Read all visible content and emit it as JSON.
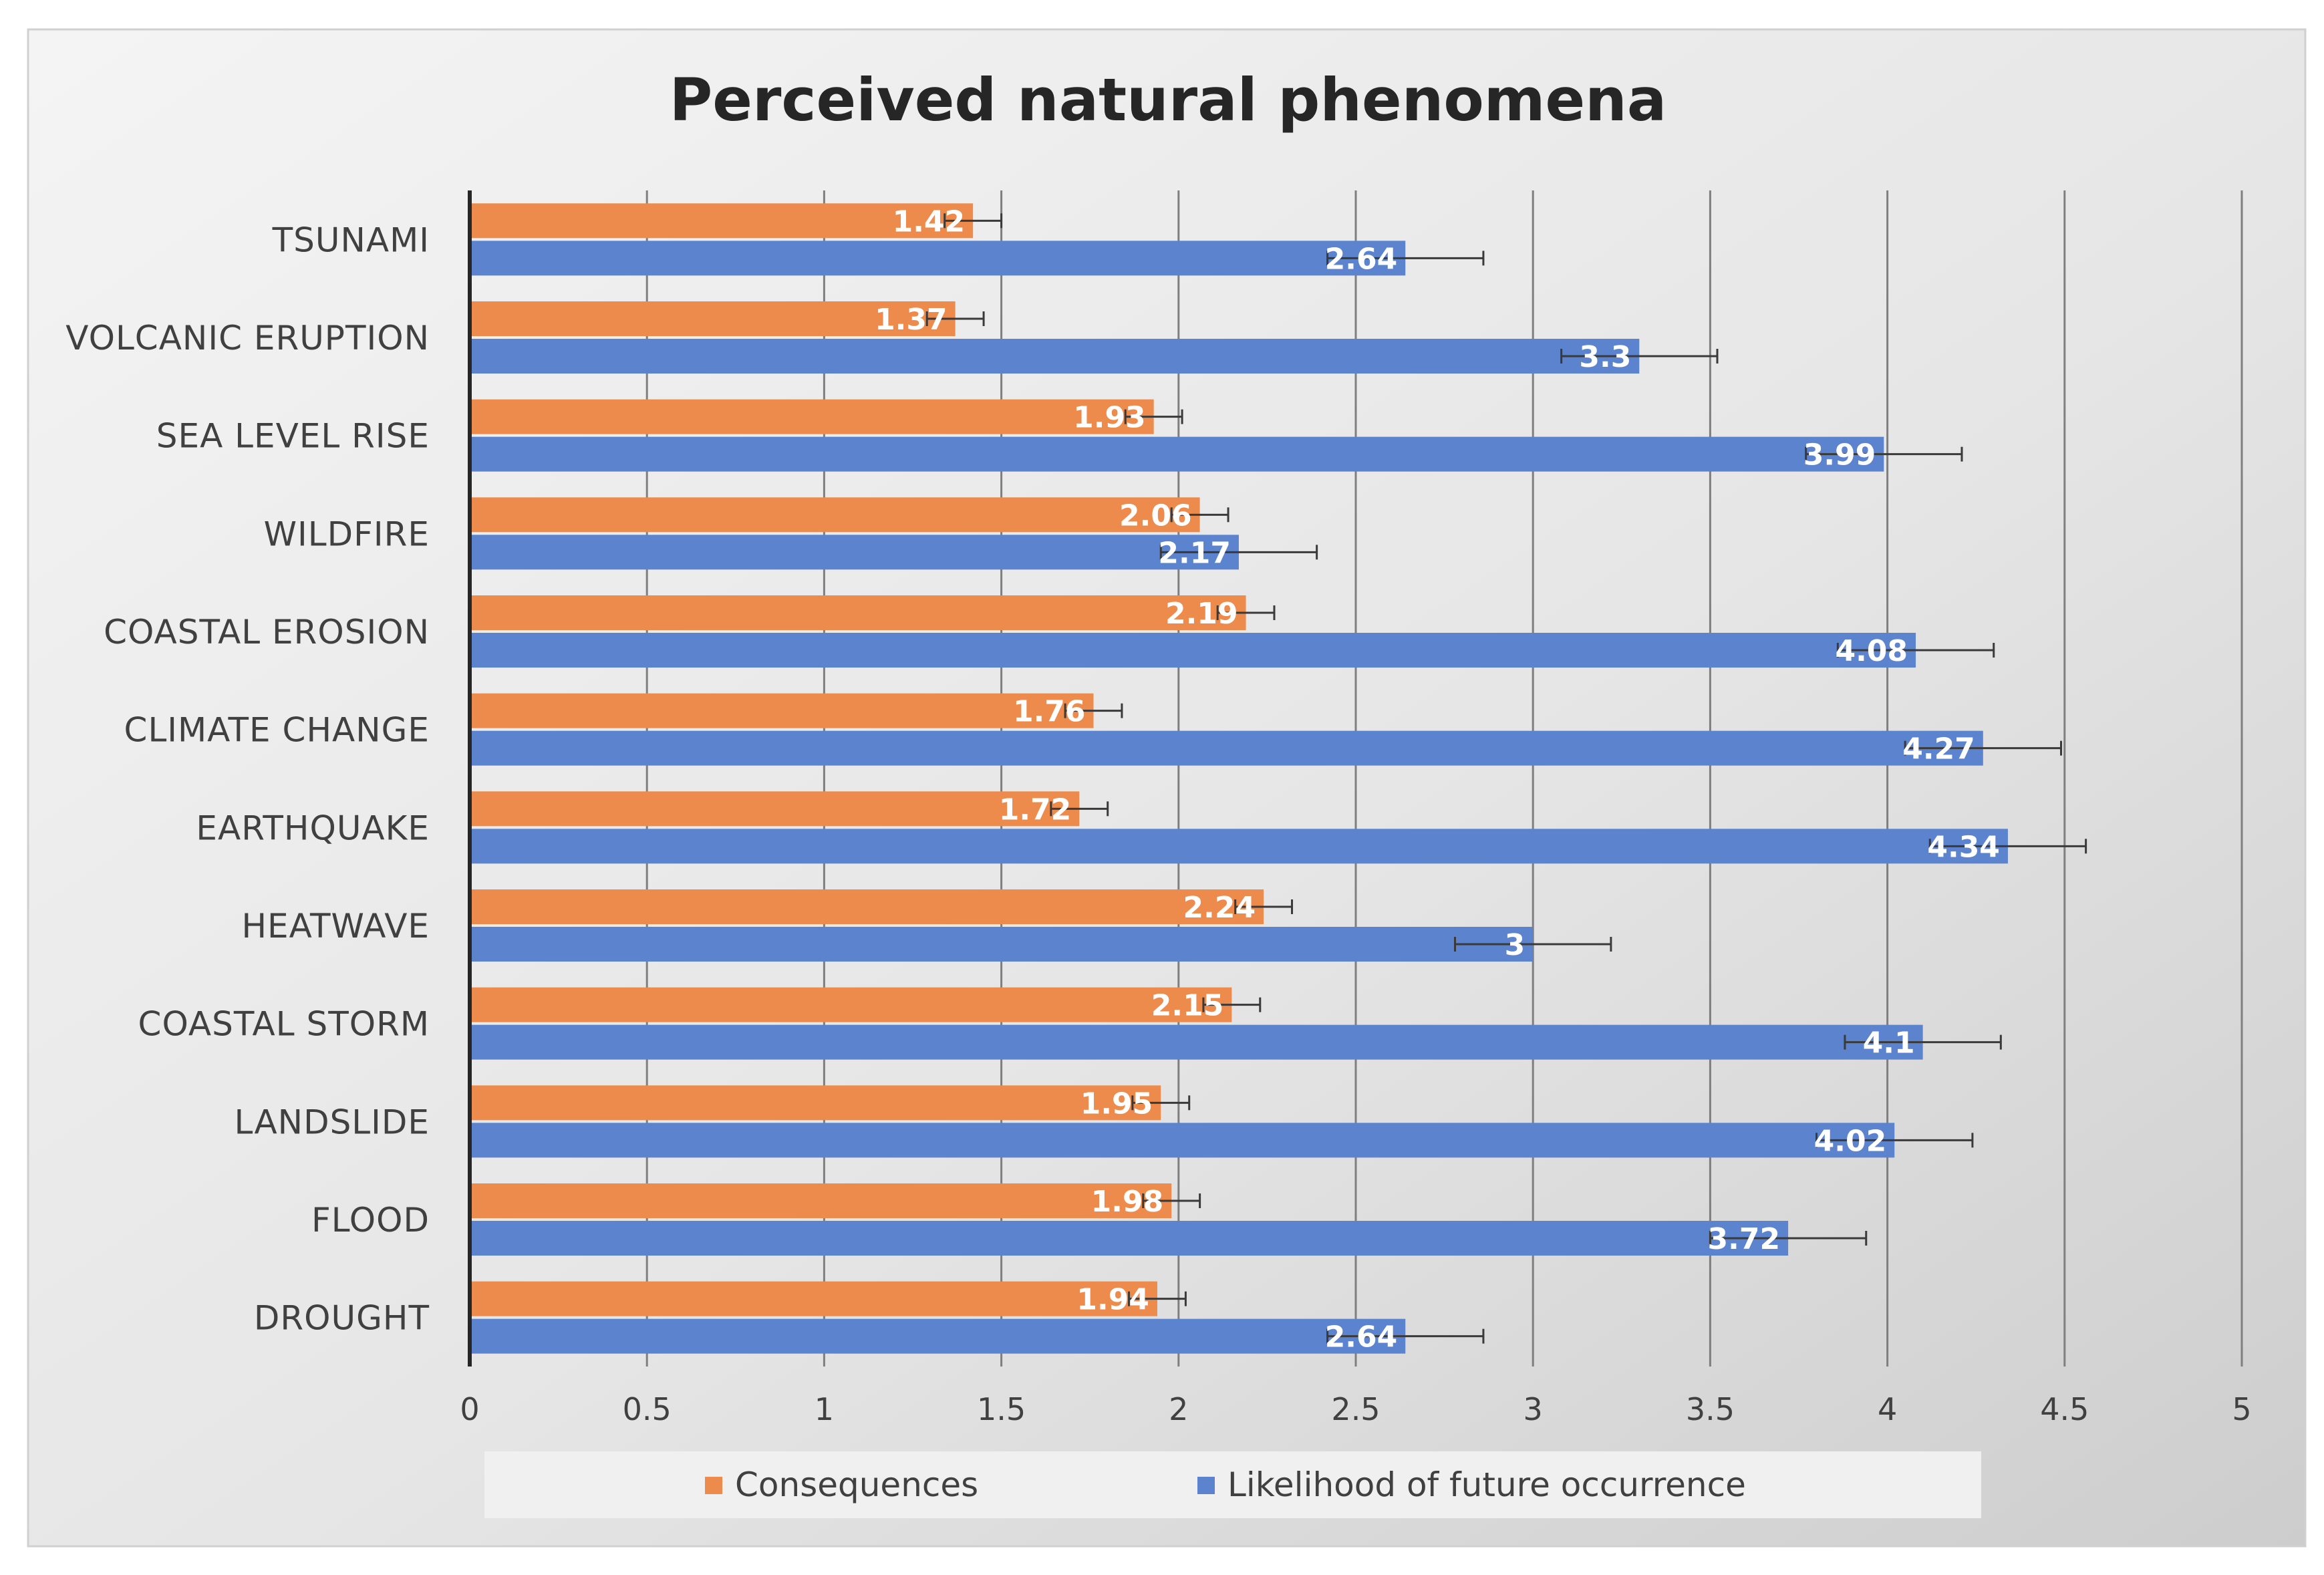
{
  "chart_data": {
    "type": "bar",
    "orientation": "horizontal",
    "title": "Perceived natural phenomena",
    "categories": [
      "TSUNAMI",
      "VOLCANIC ERUPTION",
      "SEA LEVEL RISE",
      "WILDFIRE",
      "COASTAL EROSION",
      "CLIMATE CHANGE",
      "EARTHQUAKE",
      "HEATWAVE",
      "COASTAL STORM",
      "LANDSLIDE",
      "FLOOD",
      "DROUGHT"
    ],
    "series": [
      {
        "name": "Consequences",
        "color": "#ED8B4C",
        "values": [
          1.42,
          1.37,
          1.93,
          2.06,
          2.19,
          1.76,
          1.72,
          2.24,
          2.15,
          1.95,
          1.98,
          1.94
        ],
        "labels": [
          "1.42",
          "1.37",
          "1.93",
          "2.06",
          "2.19",
          "1.76",
          "1.72",
          "2.24",
          "2.15",
          "1.95",
          "1.98",
          "1.94"
        ],
        "error": [
          0.08,
          0.08,
          0.08,
          0.08,
          0.08,
          0.08,
          0.08,
          0.08,
          0.08,
          0.08,
          0.08,
          0.08
        ]
      },
      {
        "name": "Likelihood of future occurrence",
        "color": "#5B83CE",
        "values": [
          2.64,
          3.3,
          3.99,
          2.17,
          4.08,
          4.27,
          4.34,
          3,
          4.1,
          4.02,
          3.72,
          2.64
        ],
        "labels": [
          "2.64",
          "3.3",
          "3.99",
          "2.17",
          "4.08",
          "4.27",
          "4.34",
          "3",
          "4.1",
          "4.02",
          "3.72",
          "2.64"
        ],
        "error": [
          0.22,
          0.22,
          0.22,
          0.22,
          0.22,
          0.22,
          0.22,
          0.22,
          0.22,
          0.22,
          0.22,
          0.22
        ]
      }
    ],
    "xlim": [
      0,
      5
    ],
    "xticks": [
      0,
      0.5,
      1,
      1.5,
      2,
      2.5,
      3,
      3.5,
      4,
      4.5,
      5
    ],
    "xtick_labels": [
      "0",
      "0.5",
      "1",
      "1.5",
      "2",
      "2.5",
      "3",
      "3.5",
      "4",
      "4.5",
      "5"
    ],
    "xlabel": "",
    "ylabel": "",
    "grid": "vertical",
    "legend": "bottom"
  },
  "colors": {
    "background_light": "#F2F2F2",
    "background_dark": "#CFCFCF",
    "gridline": "#7F7F7F",
    "axis": "#262626",
    "legend_box": "#F0F0F0"
  }
}
